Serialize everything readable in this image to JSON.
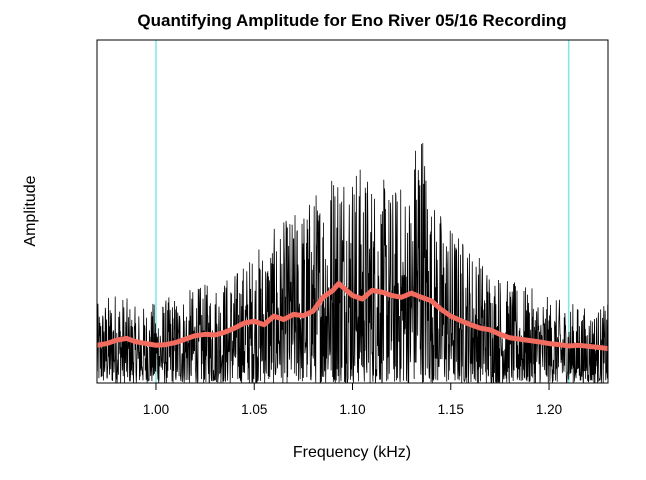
{
  "chart_data": {
    "type": "line",
    "title": "Quantifying Amplitude for Eno River 05/16 Recording",
    "xlabel": "Frequency (kHz)",
    "ylabel": "Amplitude",
    "xlim": [
      0.97,
      1.23
    ],
    "ylim": [
      0,
      1
    ],
    "x_ticks": [
      "1.00",
      "1.05",
      "1.10",
      "1.15",
      "1.20"
    ],
    "y_ticks": [],
    "reference_lines": [
      {
        "axis": "x",
        "value": 1.0,
        "color": "#7fe8e8"
      },
      {
        "axis": "x",
        "value": 1.21,
        "color": "#7fe8e8"
      }
    ],
    "series": [
      {
        "style": "raw",
        "color": "#000000",
        "peaks": [
          [
            0.97,
            0.23
          ],
          [
            0.98,
            0.28
          ],
          [
            0.99,
            0.22
          ],
          [
            1.0,
            0.24
          ],
          [
            1.01,
            0.26
          ],
          [
            1.02,
            0.28
          ],
          [
            1.03,
            0.3
          ],
          [
            1.04,
            0.33
          ],
          [
            1.05,
            0.39
          ],
          [
            1.06,
            0.45
          ],
          [
            1.07,
            0.5
          ],
          [
            1.08,
            0.56
          ],
          [
            1.09,
            0.66
          ],
          [
            1.095,
            0.7
          ],
          [
            1.1,
            0.66
          ],
          [
            1.11,
            0.62
          ],
          [
            1.12,
            0.58
          ],
          [
            1.13,
            0.6
          ],
          [
            1.134,
            0.88
          ],
          [
            1.14,
            0.55
          ],
          [
            1.15,
            0.47
          ],
          [
            1.16,
            0.41
          ],
          [
            1.17,
            0.35
          ],
          [
            1.18,
            0.3
          ],
          [
            1.19,
            0.28
          ],
          [
            1.2,
            0.25
          ],
          [
            1.21,
            0.24
          ],
          [
            1.22,
            0.22
          ],
          [
            1.23,
            0.23
          ]
        ]
      },
      {
        "style": "smoothed",
        "color": "#f26b5f",
        "x": [
          0.97,
          0.975,
          0.98,
          0.985,
          0.99,
          0.995,
          1.0,
          1.005,
          1.01,
          1.015,
          1.02,
          1.025,
          1.03,
          1.035,
          1.04,
          1.045,
          1.05,
          1.055,
          1.06,
          1.065,
          1.07,
          1.075,
          1.08,
          1.085,
          1.09,
          1.093,
          1.095,
          1.1,
          1.105,
          1.11,
          1.115,
          1.12,
          1.125,
          1.13,
          1.135,
          1.14,
          1.145,
          1.15,
          1.155,
          1.16,
          1.165,
          1.17,
          1.175,
          1.18,
          1.185,
          1.19,
          1.195,
          1.2,
          1.205,
          1.21,
          1.215,
          1.22,
          1.225,
          1.23
        ],
        "values": [
          0.11,
          0.115,
          0.125,
          0.13,
          0.12,
          0.115,
          0.11,
          0.112,
          0.118,
          0.128,
          0.138,
          0.142,
          0.14,
          0.148,
          0.16,
          0.175,
          0.18,
          0.17,
          0.195,
          0.185,
          0.2,
          0.196,
          0.21,
          0.25,
          0.27,
          0.29,
          0.28,
          0.255,
          0.245,
          0.27,
          0.265,
          0.255,
          0.25,
          0.262,
          0.25,
          0.24,
          0.215,
          0.195,
          0.182,
          0.17,
          0.16,
          0.155,
          0.142,
          0.132,
          0.128,
          0.124,
          0.12,
          0.115,
          0.112,
          0.108,
          0.11,
          0.107,
          0.104,
          0.1
        ]
      }
    ],
    "grid": false,
    "legend": "none"
  }
}
